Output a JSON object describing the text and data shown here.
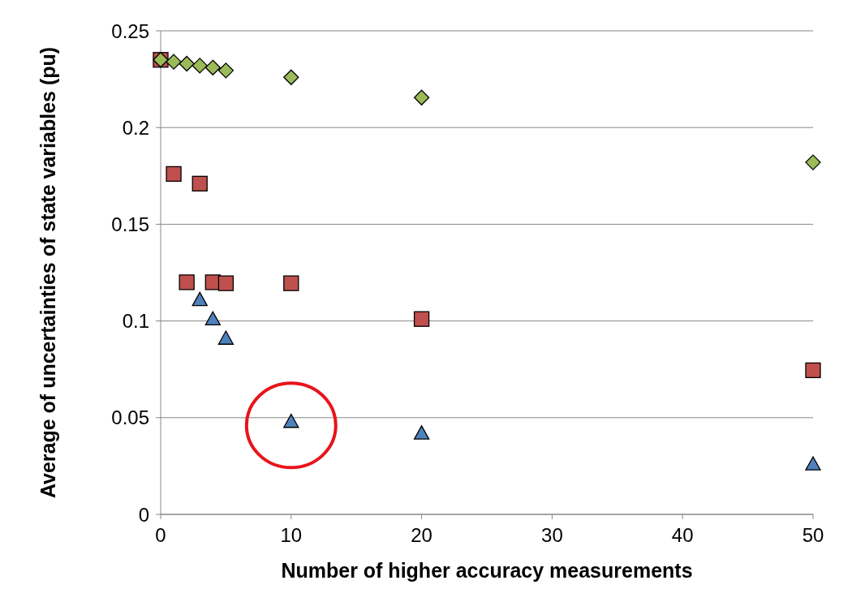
{
  "chart_data": {
    "type": "scatter",
    "xlabel": "Number of higher accuracy measurements",
    "ylabel": "Average of uncertainties of state variables (pu)",
    "xlim": [
      0,
      50
    ],
    "xticks": [
      0,
      10,
      20,
      30,
      40,
      50
    ],
    "ylim": [
      0,
      0.25
    ],
    "yticks": [
      {
        "value": 0,
        "label": "0"
      },
      {
        "value": 0.05,
        "label": "0.05"
      },
      {
        "value": 0.1,
        "label": "0.1"
      },
      {
        "value": 0.15,
        "label": "0.15"
      },
      {
        "value": 0.2,
        "label": "0.2"
      },
      {
        "value": 0.25,
        "label": "0.25"
      }
    ],
    "grid": "y",
    "series": [
      {
        "color": "#9bbb59",
        "marker": "diamond",
        "x": [
          0,
          1,
          2,
          3,
          4,
          5,
          10,
          20,
          50
        ],
        "values": [
          0.235,
          0.234,
          0.233,
          0.232,
          0.231,
          0.2295,
          0.226,
          0.2155,
          0.182
        ]
      },
      {
        "color": "#c0504d",
        "marker": "square",
        "x": [
          0,
          1,
          2,
          3,
          4,
          5,
          10,
          20,
          50
        ],
        "values": [
          0.235,
          0.176,
          0.12,
          0.171,
          0.12,
          0.1195,
          0.1195,
          0.101,
          0.0745
        ]
      },
      {
        "color": "#4f81bd",
        "marker": "triangle",
        "x": [
          3,
          4,
          5,
          10,
          20,
          50
        ],
        "values": [
          0.111,
          0.101,
          0.091,
          0.048,
          0.042,
          0.026
        ]
      }
    ]
  }
}
